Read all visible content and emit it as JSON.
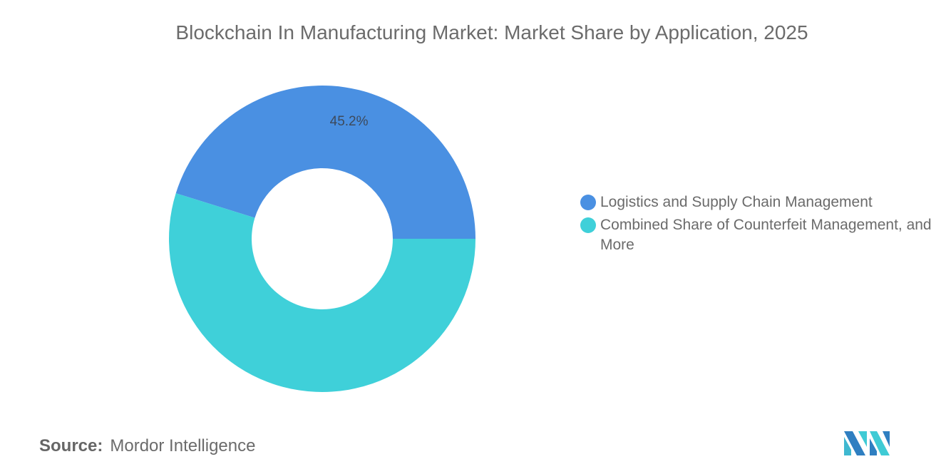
{
  "chart_data": {
    "type": "pie",
    "variant": "donut",
    "title": "Blockchain In Manufacturing Market: Market Share by Application, 2025",
    "categories": [
      "Logistics and Supply Chain Management",
      "Combined Share of Counterfeit Management, and More"
    ],
    "values": [
      45.2,
      54.8
    ],
    "data_labels": [
      "45.2%",
      ""
    ],
    "colors": [
      "#4a90e2",
      "#3fd0d9"
    ],
    "legend_position": "right"
  },
  "source": {
    "label": "Source:",
    "text": "Mordor Intelligence"
  }
}
